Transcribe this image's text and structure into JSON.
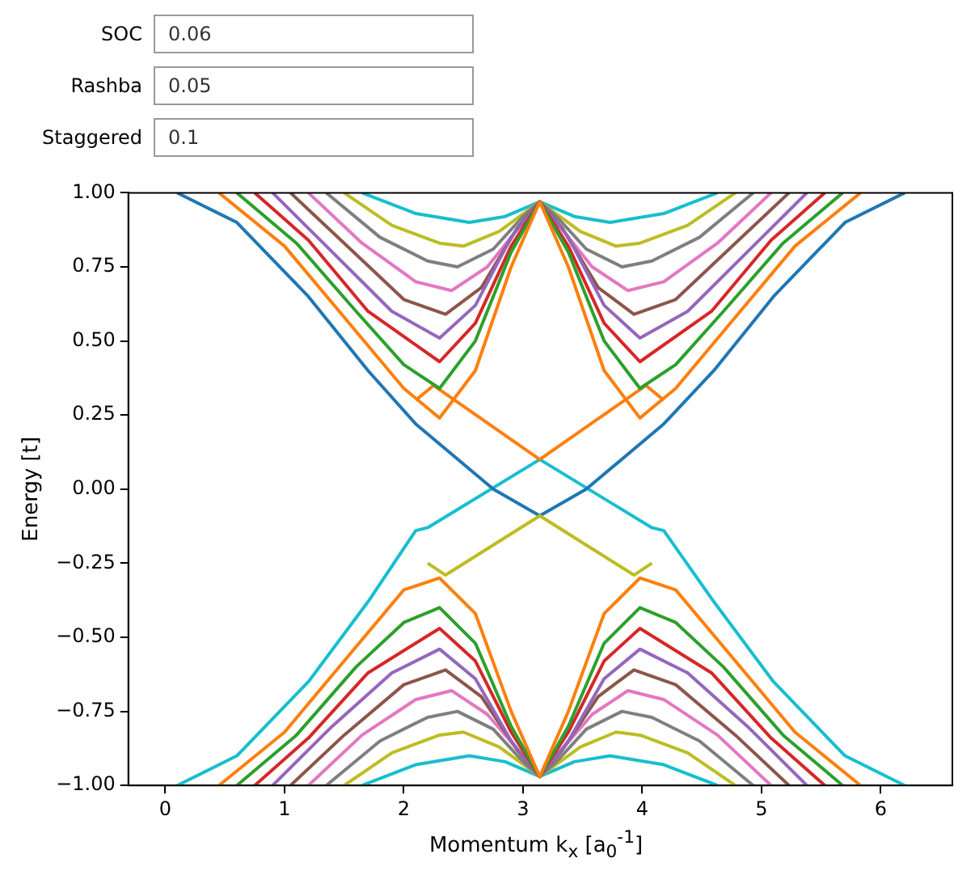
{
  "chart_data": {
    "type": "line",
    "xlabel": "Momentum k$_{x}$ [a$_{0}$$^{-1}$]",
    "ylabel": "Energy [t]",
    "annotations": [
      "SOC",
      "0.06",
      "Rashba",
      "0.05",
      "Staggered",
      "0.1"
    ],
    "xlim": [
      -0.31,
      6.6
    ],
    "xticks": [
      0,
      1,
      2,
      3,
      4,
      5,
      6
    ],
    "ylim": [
      -1,
      1
    ],
    "yticks": [
      {
        "value": -1,
        "label": "−1.00"
      },
      {
        "value": -0.75,
        "label": "−0.75"
      },
      {
        "value": -0.5,
        "label": "−0.50"
      },
      {
        "value": -0.25,
        "label": "−0.25"
      },
      {
        "value": 0,
        "label": "0.00"
      },
      {
        "value": 0.25,
        "label": "0.25"
      },
      {
        "value": 0.5,
        "label": "0.50"
      },
      {
        "value": 0.75,
        "label": "0.75"
      },
      {
        "value": 1,
        "label": "1.00"
      }
    ],
    "grid": false,
    "legend": false,
    "marker": "none",
    "series": [
      {
        "color": "#ff7f0e",
        "x": [
          0.45,
          1.0,
          1.5,
          2.0,
          2.3,
          2.6,
          2.9,
          3.14,
          3.38,
          3.68,
          3.98,
          4.28,
          4.78,
          5.28,
          5.83
        ],
        "values": [
          1,
          0.82,
          0.58,
          0.34,
          0.24,
          0.4,
          0.75,
          0.97,
          0.75,
          0.4,
          0.24,
          0.34,
          0.58,
          0.82,
          1
        ]
      },
      {
        "color": "#2ca02c",
        "x": [
          0.6,
          1.1,
          1.6,
          2.0,
          2.3,
          2.6,
          2.9,
          3.14,
          3.38,
          3.68,
          3.98,
          4.28,
          4.68,
          5.18,
          5.68
        ],
        "values": [
          1,
          0.83,
          0.6,
          0.42,
          0.34,
          0.5,
          0.8,
          0.97,
          0.8,
          0.5,
          0.34,
          0.42,
          0.6,
          0.83,
          1
        ]
      },
      {
        "color": "#d62728",
        "x": [
          0.75,
          1.2,
          1.7,
          2.3,
          2.6,
          2.9,
          3.14,
          3.38,
          3.68,
          3.98,
          4.58,
          5.08,
          5.53
        ],
        "values": [
          1,
          0.84,
          0.6,
          0.43,
          0.56,
          0.82,
          0.97,
          0.82,
          0.56,
          0.43,
          0.6,
          0.84,
          1
        ]
      },
      {
        "color": "#9467bd",
        "x": [
          0.9,
          1.4,
          1.9,
          2.3,
          2.6,
          2.9,
          3.14,
          3.38,
          3.68,
          3.98,
          4.38,
          4.88,
          5.38
        ],
        "values": [
          1,
          0.8,
          0.6,
          0.51,
          0.62,
          0.85,
          0.97,
          0.85,
          0.62,
          0.51,
          0.6,
          0.8,
          1
        ]
      },
      {
        "color": "#8c564b",
        "x": [
          1.05,
          1.5,
          2.0,
          2.35,
          2.65,
          2.95,
          3.14,
          3.33,
          3.63,
          3.93,
          4.28,
          4.78,
          5.23
        ],
        "values": [
          1,
          0.83,
          0.64,
          0.59,
          0.68,
          0.88,
          0.97,
          0.88,
          0.68,
          0.59,
          0.64,
          0.83,
          1
        ]
      },
      {
        "color": "#e377c2",
        "x": [
          1.2,
          1.65,
          2.1,
          2.4,
          2.7,
          3.0,
          3.14,
          3.28,
          3.58,
          3.88,
          4.18,
          4.63,
          5.08
        ],
        "values": [
          1,
          0.83,
          0.7,
          0.67,
          0.75,
          0.9,
          0.97,
          0.9,
          0.75,
          0.67,
          0.7,
          0.83,
          1
        ]
      },
      {
        "color": "#7f7f7f",
        "x": [
          1.35,
          1.8,
          2.2,
          2.45,
          2.75,
          3.0,
          3.14,
          3.28,
          3.53,
          3.83,
          4.08,
          4.48,
          4.93
        ],
        "values": [
          1,
          0.85,
          0.77,
          0.75,
          0.81,
          0.92,
          0.97,
          0.92,
          0.81,
          0.75,
          0.77,
          0.85,
          1
        ]
      },
      {
        "color": "#bcbd22",
        "x": [
          1.5,
          1.9,
          2.3,
          2.5,
          2.8,
          3.14,
          3.48,
          3.78,
          3.98,
          4.38,
          4.78
        ],
        "values": [
          1,
          0.89,
          0.83,
          0.82,
          0.87,
          0.97,
          0.87,
          0.82,
          0.83,
          0.89,
          1
        ]
      },
      {
        "color": "#17becf",
        "x": [
          1.65,
          2.1,
          2.55,
          2.85,
          3.14,
          3.43,
          3.73,
          4.18,
          4.63
        ],
        "values": [
          1,
          0.93,
          0.9,
          0.92,
          0.97,
          0.92,
          0.9,
          0.93,
          1
        ]
      },
      {
        "color": "#ff7f0e",
        "x": [
          0.45,
          1.0,
          1.5,
          2.0,
          2.3,
          2.6,
          2.9,
          3.14,
          3.38,
          3.68,
          3.98,
          4.28,
          4.78,
          5.28,
          5.83
        ],
        "values": [
          -1,
          -0.82,
          -0.58,
          -0.34,
          -0.3,
          -0.42,
          -0.75,
          -0.97,
          -0.75,
          -0.42,
          -0.3,
          -0.34,
          -0.58,
          -0.82,
          -1
        ]
      },
      {
        "color": "#2ca02c",
        "x": [
          0.6,
          1.1,
          1.6,
          2.0,
          2.3,
          2.6,
          2.9,
          3.14,
          3.38,
          3.68,
          3.98,
          4.28,
          4.68,
          5.18,
          5.68
        ],
        "values": [
          -1,
          -0.83,
          -0.6,
          -0.45,
          -0.4,
          -0.52,
          -0.8,
          -0.97,
          -0.8,
          -0.52,
          -0.4,
          -0.45,
          -0.6,
          -0.83,
          -1
        ]
      },
      {
        "color": "#d62728",
        "x": [
          0.75,
          1.2,
          1.7,
          2.3,
          2.6,
          2.9,
          3.14,
          3.38,
          3.68,
          3.98,
          4.58,
          5.08,
          5.53
        ],
        "values": [
          -1,
          -0.84,
          -0.62,
          -0.47,
          -0.58,
          -0.82,
          -0.97,
          -0.82,
          -0.58,
          -0.47,
          -0.62,
          -0.84,
          -1
        ]
      },
      {
        "color": "#9467bd",
        "x": [
          0.9,
          1.4,
          1.9,
          2.3,
          2.6,
          2.9,
          3.14,
          3.38,
          3.68,
          3.98,
          4.38,
          4.88,
          5.38
        ],
        "values": [
          -1,
          -0.8,
          -0.62,
          -0.54,
          -0.64,
          -0.85,
          -0.97,
          -0.85,
          -0.64,
          -0.54,
          -0.62,
          -0.8,
          -1
        ]
      },
      {
        "color": "#8c564b",
        "x": [
          1.05,
          1.5,
          2.0,
          2.35,
          2.65,
          2.95,
          3.14,
          3.33,
          3.63,
          3.93,
          4.28,
          4.78,
          5.23
        ],
        "values": [
          -1,
          -0.83,
          -0.66,
          -0.61,
          -0.7,
          -0.88,
          -0.97,
          -0.88,
          -0.7,
          -0.61,
          -0.66,
          -0.83,
          -1
        ]
      },
      {
        "color": "#e377c2",
        "x": [
          1.2,
          1.65,
          2.1,
          2.4,
          2.7,
          3.0,
          3.14,
          3.28,
          3.58,
          3.88,
          4.18,
          4.63,
          5.08
        ],
        "values": [
          -1,
          -0.83,
          -0.71,
          -0.68,
          -0.76,
          -0.9,
          -0.97,
          -0.9,
          -0.76,
          -0.68,
          -0.71,
          -0.83,
          -1
        ]
      },
      {
        "color": "#7f7f7f",
        "x": [
          1.35,
          1.8,
          2.2,
          2.45,
          2.75,
          3.0,
          3.14,
          3.28,
          3.53,
          3.83,
          4.08,
          4.48,
          4.93
        ],
        "values": [
          -1,
          -0.85,
          -0.77,
          -0.75,
          -0.81,
          -0.92,
          -0.97,
          -0.92,
          -0.81,
          -0.75,
          -0.77,
          -0.85,
          -1
        ]
      },
      {
        "color": "#bcbd22",
        "x": [
          1.5,
          1.9,
          2.3,
          2.5,
          2.8,
          3.14,
          3.48,
          3.78,
          3.98,
          4.38,
          4.78
        ],
        "values": [
          -1,
          -0.89,
          -0.83,
          -0.82,
          -0.87,
          -0.97,
          -0.87,
          -0.82,
          -0.83,
          -0.89,
          -1
        ]
      },
      {
        "color": "#17becf",
        "x": [
          1.65,
          2.1,
          2.55,
          2.85,
          3.14,
          3.43,
          3.73,
          4.18,
          4.63
        ],
        "values": [
          -1,
          -0.93,
          -0.9,
          -0.92,
          -0.97,
          -0.92,
          -0.9,
          -0.93,
          -1
        ]
      },
      {
        "color": "#ff7f0e",
        "x": [
          2.1,
          2.25,
          3.14,
          4.03,
          4.18
        ],
        "values": [
          0.3,
          0.35,
          0.1,
          0.35,
          0.3
        ]
      },
      {
        "color": "#bcbd22",
        "x": [
          2.2,
          2.35,
          3.14,
          3.93,
          4.08
        ],
        "values": [
          -0.25,
          -0.29,
          -0.09,
          -0.29,
          -0.25
        ]
      },
      {
        "color": "#1f77b4",
        "x": [
          0.1,
          0.6,
          1.2,
          1.7,
          2.1,
          2.75,
          3.14,
          3.53,
          4.18,
          4.6,
          5.1,
          5.7,
          6.2
        ],
        "values": [
          1,
          0.9,
          0.65,
          0.4,
          0.22,
          0,
          -0.09,
          0,
          0.22,
          0.4,
          0.65,
          0.9,
          1
        ]
      },
      {
        "color": "#17becf",
        "x": [
          0.1,
          0.6,
          1.2,
          1.7,
          2.1,
          2.2,
          3.14,
          4.08,
          4.18,
          4.6,
          5.1,
          5.7,
          6.2
        ],
        "values": [
          -1,
          -0.9,
          -0.65,
          -0.38,
          -0.14,
          -0.13,
          0.1,
          -0.13,
          -0.14,
          -0.38,
          -0.65,
          -0.9,
          -1
        ]
      }
    ]
  }
}
